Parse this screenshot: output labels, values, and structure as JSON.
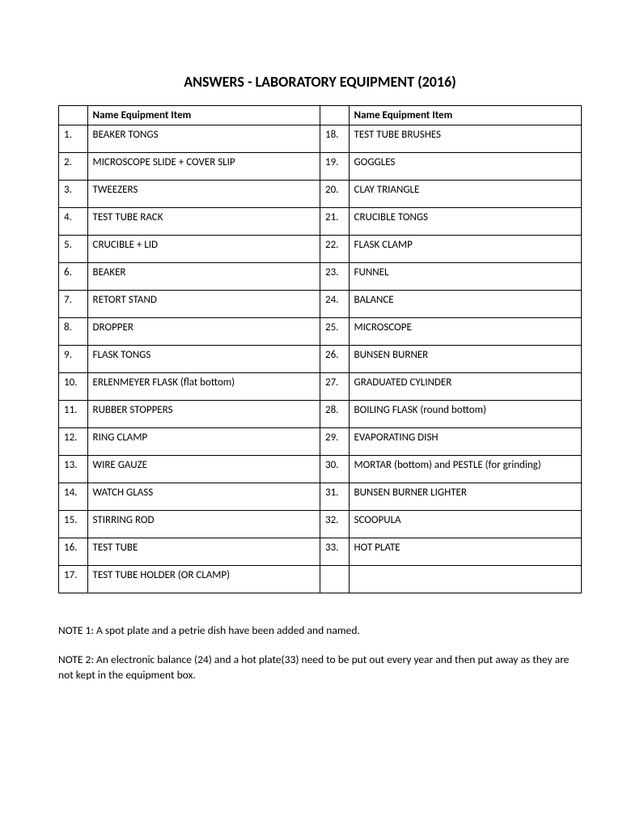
{
  "title": "ANSWERS - LABORATORY  EQUIPMENT (2016)",
  "header_left": "Name Equipment Item",
  "header_right": "Name Equipment Item",
  "rows": [
    {
      "ln": "1.",
      "la": "BEAKER TONGS",
      "rn": "18.",
      "ra": "TEST TUBE BRUSHES"
    },
    {
      "ln": "2.",
      "la": "MICROSCOPE SLIDE + COVER SLIP",
      "rn": "19.",
      "ra": "GOGGLES"
    },
    {
      "ln": "3.",
      "la": "TWEEZERS",
      "rn": "20.",
      "ra": "CLAY TRIANGLE"
    },
    {
      "ln": "4.",
      "la": "TEST TUBE RACK",
      "rn": "21.",
      "ra": "CRUCIBLE TONGS"
    },
    {
      "ln": "5.",
      "la": "CRUCIBLE + LID",
      "rn": "22.",
      "ra": "FLASK CLAMP"
    },
    {
      "ln": "6.",
      "la": "BEAKER",
      "rn": "23.",
      "ra": "FUNNEL"
    },
    {
      "ln": "7.",
      "la": "RETORT STAND",
      "rn": "24.",
      "ra": "BALANCE"
    },
    {
      "ln": "8.",
      "la": "DROPPER",
      "rn": "25.",
      "ra": "MICROSCOPE"
    },
    {
      "ln": "9.",
      "la": "FLASK TONGS",
      "rn": "26.",
      "ra": "BUNSEN BURNER"
    },
    {
      "ln": "10.",
      "la": "ERLENMEYER FLASK (flat bottom)",
      "rn": "27.",
      "ra": "GRADUATED CYLINDER"
    },
    {
      "ln": "11.",
      "la": "RUBBER STOPPERS",
      "rn": "28.",
      "ra": "BOILING FLASK (round bottom)"
    },
    {
      "ln": "12.",
      "la": "RING CLAMP",
      "rn": "29.",
      "ra": "EVAPORATING DISH"
    },
    {
      "ln": "13.",
      "la": "WIRE GAUZE",
      "rn": "30.",
      "ra": "MORTAR (bottom) and PESTLE (for grinding)"
    },
    {
      "ln": "14.",
      "la": "WATCH GLASS",
      "rn": "31.",
      "ra": "BUNSEN BURNER LIGHTER"
    },
    {
      "ln": "15.",
      "la": "STIRRING ROD",
      "rn": "32.",
      "ra": "SCOOPULA"
    },
    {
      "ln": "16.",
      "la": "TEST TUBE",
      "rn": "33.",
      "ra": "HOT PLATE"
    },
    {
      "ln": "17.",
      "la": "TEST TUBE HOLDER (OR CLAMP)",
      "rn": "",
      "ra": ""
    }
  ],
  "note1": "NOTE 1: A spot plate and a petrie dish have been added and named.",
  "note2": "NOTE 2: An electronic balance (24) and a hot plate(33) need to be put out every year and then put away as they are not kept in the equipment box."
}
